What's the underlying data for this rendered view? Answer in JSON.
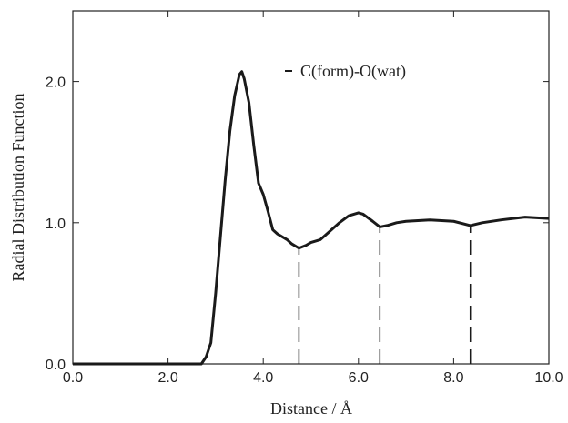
{
  "chart_data": {
    "type": "line",
    "x_label": "Distance / Å",
    "y_label": "Radial Distribution Function",
    "xlim": [
      0,
      10
    ],
    "ylim": [
      0,
      2.5
    ],
    "xticks": [
      {
        "value": 0,
        "label": "0.0"
      },
      {
        "value": 2,
        "label": "2.0"
      },
      {
        "value": 4,
        "label": "4.0"
      },
      {
        "value": 6,
        "label": "6.0"
      },
      {
        "value": 8,
        "label": "8.0"
      },
      {
        "value": 10,
        "label": "10.0"
      }
    ],
    "yticks": [
      {
        "value": 0,
        "label": "0.0"
      },
      {
        "value": 1,
        "label": "1.0"
      },
      {
        "value": 2,
        "label": "2.0"
      }
    ],
    "legend_position": "upper right",
    "dashed_lines": [
      4.75,
      6.45,
      8.35
    ],
    "series": [
      {
        "name": "C(form)-O(wat)",
        "color": "#1a1a1a",
        "x": [
          0,
          2.7,
          2.8,
          2.9,
          3.0,
          3.1,
          3.2,
          3.3,
          3.4,
          3.5,
          3.55,
          3.6,
          3.7,
          3.8,
          3.9,
          4.0,
          4.1,
          4.2,
          4.3,
          4.4,
          4.5,
          4.6,
          4.75,
          4.9,
          5.0,
          5.2,
          5.4,
          5.6,
          5.8,
          6.0,
          6.1,
          6.3,
          6.45,
          6.6,
          6.8,
          7.0,
          7.5,
          8.0,
          8.35,
          8.6,
          9.0,
          9.5,
          10.0
        ],
        "values": [
          0,
          0,
          0.05,
          0.15,
          0.5,
          0.9,
          1.3,
          1.65,
          1.9,
          2.05,
          2.07,
          2.02,
          1.85,
          1.55,
          1.28,
          1.2,
          1.08,
          0.95,
          0.92,
          0.9,
          0.88,
          0.85,
          0.82,
          0.84,
          0.86,
          0.88,
          0.94,
          1.0,
          1.05,
          1.07,
          1.06,
          1.01,
          0.97,
          0.98,
          1.0,
          1.01,
          1.02,
          1.01,
          0.98,
          1.0,
          1.02,
          1.04,
          1.03
        ]
      }
    ]
  }
}
